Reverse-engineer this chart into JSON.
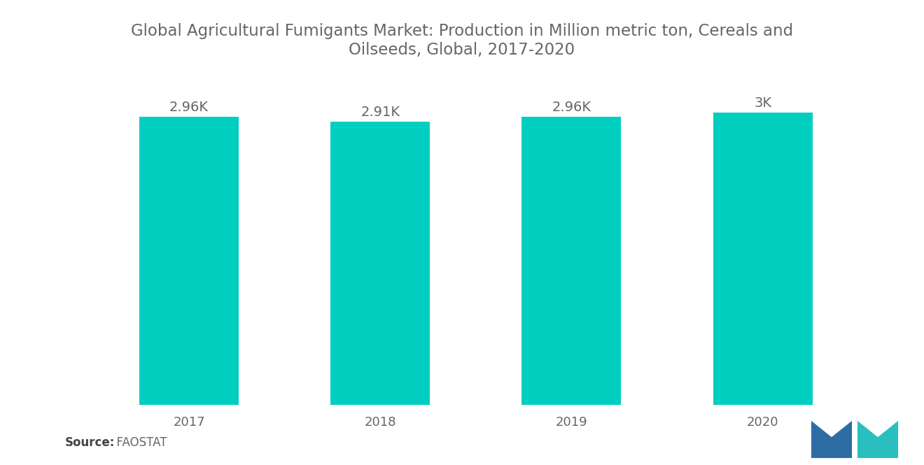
{
  "title": "Global Agricultural Fumigants Market: Production in Million metric ton, Cereals and\nOilseeds, Global, 2017-2020",
  "categories": [
    "2017",
    "2018",
    "2019",
    "2020"
  ],
  "values": [
    2960,
    2910,
    2960,
    3000
  ],
  "labels": [
    "2.96K",
    "2.91K",
    "2.96K",
    "3K"
  ],
  "bar_color": "#00CFC0",
  "background_color": "#FFFFFF",
  "source_bold": "Source:",
  "source_normal": "  FAOSTAT",
  "title_fontsize": 16.5,
  "label_fontsize": 14,
  "tick_fontsize": 13,
  "source_fontsize": 12,
  "bar_width": 0.52,
  "ylim_min": 0,
  "ylim_max": 3300,
  "text_color": "#666666",
  "logo_blue": "#2E6DA4",
  "logo_teal": "#2ABFBF"
}
